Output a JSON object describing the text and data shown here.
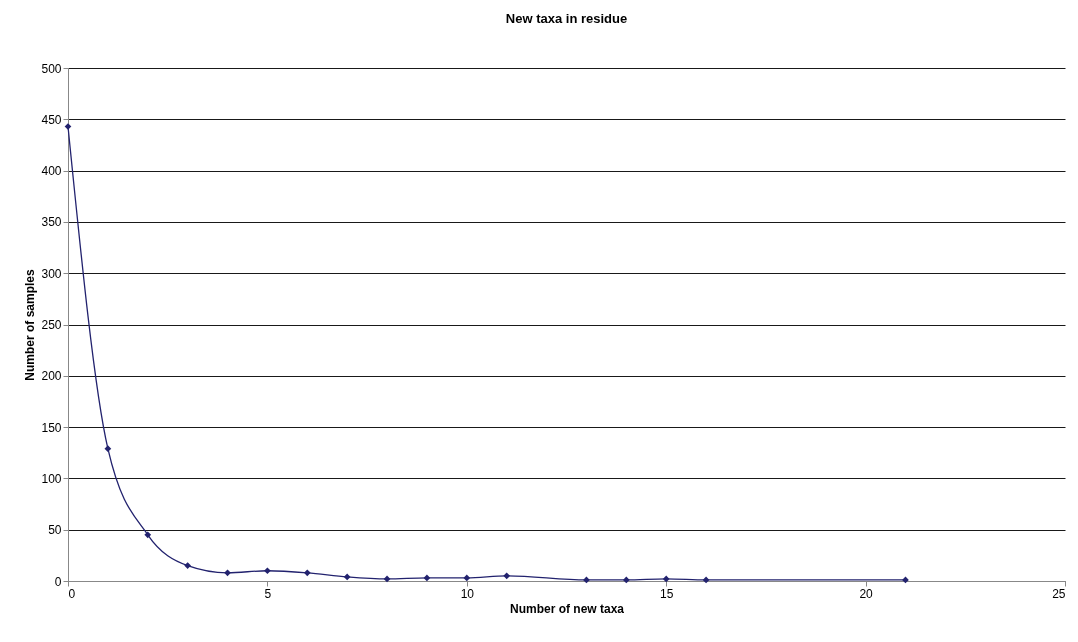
{
  "chart_data": {
    "type": "line",
    "title": "New taxa in residue",
    "xlabel": "Number of new taxa",
    "ylabel": "Number of samples",
    "x": [
      0,
      1,
      2,
      3,
      4,
      5,
      6,
      7,
      8,
      9,
      10,
      11,
      13,
      14,
      15,
      16,
      21
    ],
    "series": [
      {
        "color": "#22226e",
        "values": [
          443,
          129,
          45,
          15,
          8,
          10,
          8,
          4,
          2,
          3,
          3,
          5,
          1,
          1,
          2,
          1,
          1
        ]
      }
    ],
    "xlim": [
      0,
      25
    ],
    "xticks": [
      0,
      5,
      10,
      15,
      20,
      25
    ],
    "ylim": [
      0,
      500
    ],
    "yticks": [
      0,
      50,
      100,
      150,
      200,
      250,
      300,
      350,
      400,
      450,
      500
    ],
    "grid": "y",
    "marker": "diamond",
    "line_style": "solid"
  }
}
